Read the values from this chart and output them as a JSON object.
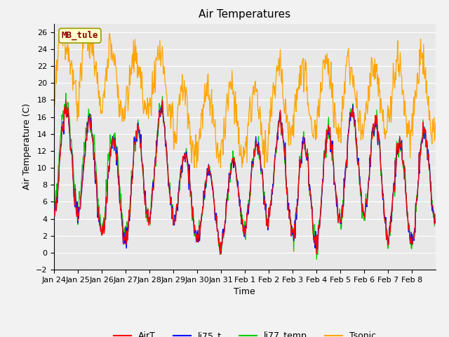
{
  "title": "Air Temperatures",
  "xlabel": "Time",
  "ylabel": "Air Temperature (C)",
  "ylim": [
    -2,
    27
  ],
  "yticks": [
    -2,
    0,
    2,
    4,
    6,
    8,
    10,
    12,
    14,
    16,
    18,
    20,
    22,
    24,
    26
  ],
  "xtick_labels": [
    "Jan 24",
    "Jan 25",
    "Jan 26",
    "Jan 27",
    "Jan 28",
    "Jan 29",
    "Jan 30",
    "Jan 31",
    "Feb 1",
    "Feb 2",
    "Feb 3",
    "Feb 4",
    "Feb 5",
    "Feb 6",
    "Feb 7",
    "Feb 8"
  ],
  "annotation_text": "MB_tule",
  "annotation_color": "#8B0000",
  "annotation_bg": "#FFFFCC",
  "annotation_border": "#9B9B00",
  "line_colors": {
    "AirT": "#FF0000",
    "li75_t": "#0000FF",
    "li77_temp": "#00CC00",
    "Tsonic": "#FFA500"
  },
  "background_color": "#E8E8E8",
  "grid_color": "#FFFFFF",
  "title_fontsize": 11,
  "label_fontsize": 9,
  "tick_fontsize": 8,
  "legend_fontsize": 9,
  "fig_width": 6.4,
  "fig_height": 4.8,
  "dpi": 100
}
